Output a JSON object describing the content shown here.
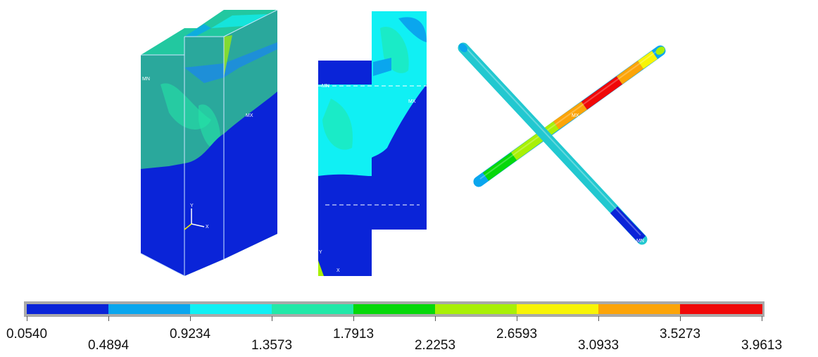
{
  "legend": {
    "colors": [
      "#0a24d8",
      "#0aa6ee",
      "#10f0f4",
      "#22e8a8",
      "#06d80a",
      "#a8f006",
      "#f8f406",
      "#fca408",
      "#f00808"
    ],
    "ticks": [
      "0.0540",
      "0.4894",
      "0.9234",
      "1.3573",
      "1.7913",
      "2.2253",
      "2.6593",
      "3.0933",
      "3.5273",
      "3.9613"
    ]
  },
  "plot_labels": {
    "mn": "MN",
    "mx": "MX",
    "axis_x": "X",
    "axis_y": "Y"
  }
}
